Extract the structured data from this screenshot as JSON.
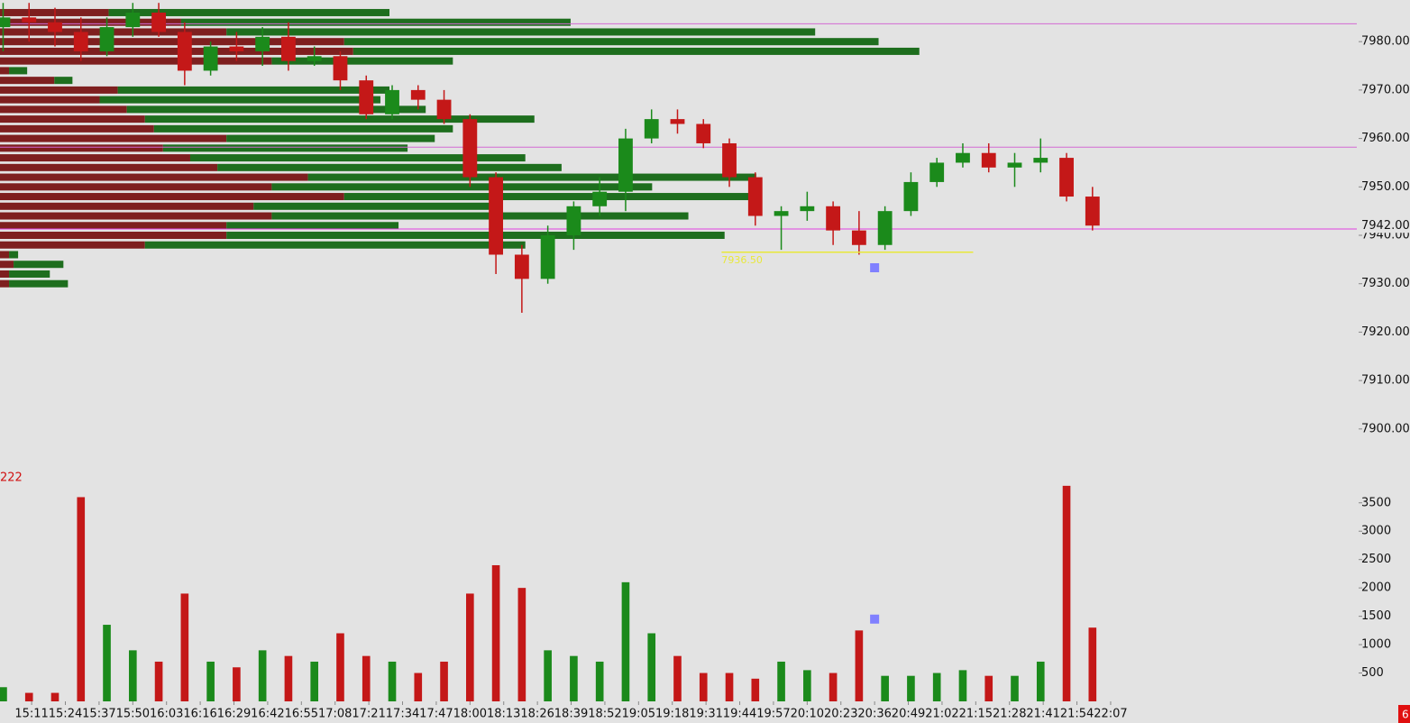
{
  "chart_data": [
    {
      "type": "candlestick",
      "x": [
        900,
        910,
        920,
        930,
        940,
        950,
        960,
        970,
        980,
        990,
        1000,
        1010,
        1020,
        1030,
        1040,
        1050,
        1060,
        1070,
        1080,
        1090,
        1100,
        1110,
        1120,
        1130,
        1140,
        1150,
        1160,
        1170,
        1180,
        1190,
        1200,
        1210,
        1220,
        1230,
        1240,
        1250,
        1260,
        1270,
        1280,
        1290,
        1300,
        1310,
        1320
      ],
      "open": [
        7983,
        7985,
        7984,
        7982,
        7978,
        7983,
        7986,
        7982,
        7974,
        7979,
        7978,
        7981,
        7976,
        7977,
        7972,
        7965,
        7970,
        7968,
        7964,
        7952,
        7936,
        7931,
        7940,
        7946,
        7949,
        7960,
        7964,
        7963,
        7959,
        7952,
        7944,
        7945,
        7946,
        7941,
        7938,
        7945,
        7951,
        7955,
        7957,
        7954,
        7955,
        7956,
        7948
      ],
      "high": [
        7988,
        7988,
        7987,
        7985,
        7985,
        7988,
        7988,
        7984,
        7980,
        7982,
        7983,
        7984,
        7979,
        7978,
        7973,
        7971,
        7971,
        7970,
        7965,
        7953,
        7938,
        7942,
        7947,
        7952,
        7962,
        7966,
        7966,
        7964,
        7960,
        7953,
        7946,
        7949,
        7947,
        7945,
        7946,
        7953,
        7956,
        7959,
        7959,
        7957,
        7960,
        7957,
        7950
      ],
      "low": [
        7978,
        7980,
        7979,
        7976,
        7977,
        7981,
        7981,
        7971,
        7973,
        7976,
        7975,
        7974,
        7975,
        7970,
        7964,
        7964,
        7966,
        7963,
        7950,
        7932,
        7924,
        7930,
        7937,
        7944,
        7945,
        7959,
        7961,
        7958,
        7950,
        7942,
        7937,
        7943,
        7938,
        7936,
        7937,
        7944,
        7950,
        7954,
        7953,
        7950,
        7953,
        7947,
        7941
      ],
      "close": [
        7985,
        7984,
        7982,
        7978,
        7983,
        7986,
        7982,
        7974,
        7979,
        7978,
        7981,
        7976,
        7977,
        7972,
        7965,
        7970,
        7968,
        7964,
        7952,
        7936,
        7931,
        7940,
        7946,
        7949,
        7960,
        7964,
        7963,
        7959,
        7952,
        7944,
        7945,
        7946,
        7941,
        7938,
        7945,
        7951,
        7955,
        7957,
        7954,
        7955,
        7956,
        7948,
        7942
      ],
      "up_color": "#1b8a1b",
      "down_color": "#c41818",
      "xlim": [
        898.8,
        1422.6
      ],
      "xticks": [
        {
          "value": 911,
          "label": "15:11"
        },
        {
          "value": 924,
          "label": "15:24"
        },
        {
          "value": 937,
          "label": "15:37"
        },
        {
          "value": 950,
          "label": "15:50"
        },
        {
          "value": 963,
          "label": "16:03"
        },
        {
          "value": 976,
          "label": "16:16"
        },
        {
          "value": 989,
          "label": "16:29"
        },
        {
          "value": 1002,
          "label": "16:42"
        },
        {
          "value": 1015,
          "label": "16:55"
        },
        {
          "value": 1028,
          "label": "17:08"
        },
        {
          "value": 1041,
          "label": "17:21"
        },
        {
          "value": 1054,
          "label": "17:34"
        },
        {
          "value": 1067,
          "label": "17:47"
        },
        {
          "value": 1080,
          "label": "18:00"
        },
        {
          "value": 1093,
          "label": "18:13"
        },
        {
          "value": 1106,
          "label": "18:26"
        },
        {
          "value": 1119,
          "label": "18:39"
        },
        {
          "value": 1132,
          "label": "18:52"
        },
        {
          "value": 1145,
          "label": "19:05"
        },
        {
          "value": 1158,
          "label": "19:18"
        },
        {
          "value": 1171,
          "label": "19:31"
        },
        {
          "value": 1184,
          "label": "19:44"
        },
        {
          "value": 1197,
          "label": "19:57"
        },
        {
          "value": 1210,
          "label": "20:10"
        },
        {
          "value": 1223,
          "label": "20:23"
        },
        {
          "value": 1236,
          "label": "20:36"
        },
        {
          "value": 1249,
          "label": "20:49"
        },
        {
          "value": 1262,
          "label": "21:02"
        },
        {
          "value": 1275,
          "label": "21:15"
        },
        {
          "value": 1288,
          "label": "21:28"
        },
        {
          "value": 1301,
          "label": "21:41"
        },
        {
          "value": 1314,
          "label": "21:54"
        },
        {
          "value": 1327,
          "label": "22:07"
        }
      ],
      "ylim": [
        7895.5,
        7988.6
      ],
      "yticks": [
        {
          "value": 7900,
          "label": "7900.00"
        },
        {
          "value": 7910,
          "label": "7910.00"
        },
        {
          "value": 7920,
          "label": "7920.00"
        },
        {
          "value": 7930,
          "label": "7930.00"
        },
        {
          "value": 7940,
          "label": "7940.00"
        },
        {
          "value": 7950,
          "label": "7950.00"
        },
        {
          "value": 7960,
          "label": "7960.00"
        },
        {
          "value": 7970,
          "label": "7970.00"
        },
        {
          "value": 7980,
          "label": "7980.00"
        }
      ],
      "levels": [
        {
          "value": 7983.7,
          "color": "#d36ad3"
        },
        {
          "value": 7958.2,
          "color": "#d36ad3"
        },
        {
          "value": 7941.3,
          "color": "#e040e0"
        }
      ],
      "level_line": {
        "value": 7936.5,
        "label": "7936.50",
        "x": [
          1177,
          1274
        ],
        "color": "#e8e83a"
      },
      "last_price": {
        "value": 7942,
        "label": "7942.00"
      },
      "marker": {
        "x": 1236,
        "value": 7933.3,
        "color": "#8080ff"
      }
    },
    {
      "type": "profile",
      "levels": [
        7986,
        7984,
        7982,
        7980,
        7978,
        7976,
        7974,
        7972,
        7970,
        7968,
        7966,
        7964,
        7962,
        7960,
        7958,
        7956,
        7954,
        7952,
        7950,
        7948,
        7946,
        7944,
        7942,
        7940,
        7938,
        7936,
        7934,
        7932,
        7930
      ],
      "xlim": [
        0,
        1500
      ],
      "series": [
        {
          "color": "#7e1f1f",
          "values": [
            120,
            200,
            250,
            380,
            390,
            300,
            10,
            60,
            130,
            110,
            140,
            160,
            170,
            250,
            180,
            210,
            240,
            340,
            300,
            380,
            280,
            300,
            250,
            250,
            160,
            10,
            15,
            10,
            10
          ]
        },
        {
          "color": "#1e6e1e",
          "values": [
            310,
            430,
            650,
            590,
            625,
            200,
            20,
            20,
            300,
            310,
            330,
            430,
            330,
            230,
            270,
            370,
            380,
            495,
            420,
            460,
            270,
            460,
            190,
            550,
            420,
            10,
            55,
            45,
            65
          ]
        }
      ]
    },
    {
      "type": "bar",
      "values": [
        250,
        150,
        150,
        3600,
        1350,
        900,
        700,
        1900,
        700,
        600,
        900,
        800,
        700,
        1200,
        800,
        700,
        500,
        700,
        1900,
        2400,
        2000,
        900,
        800,
        700,
        2100,
        1200,
        800,
        500,
        500,
        400,
        700,
        550,
        500,
        1250,
        450,
        450,
        500,
        550,
        450,
        450,
        700,
        3800,
        1300
      ],
      "ylim": [
        0,
        4100
      ],
      "yticks": [
        500,
        1000,
        1500,
        2000,
        2500,
        3000,
        3500
      ],
      "label": "222",
      "marker": {
        "x": 1236,
        "value": 1450,
        "color": "#8080ff"
      },
      "corner_label": "6"
    }
  ]
}
